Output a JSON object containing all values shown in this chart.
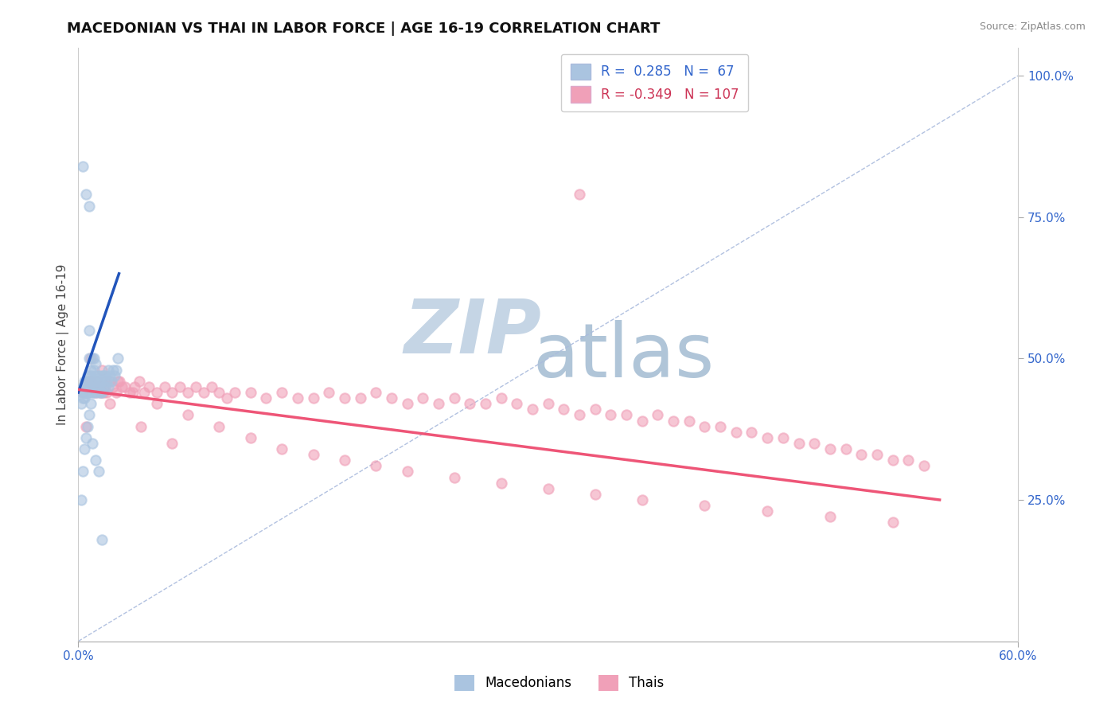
{
  "title": "MACEDONIAN VS THAI IN LABOR FORCE | AGE 16-19 CORRELATION CHART",
  "source": "Source: ZipAtlas.com",
  "ylabel": "In Labor Force | Age 16-19",
  "y_ticks_labels": [
    "100.0%",
    "75.0%",
    "50.0%",
    "25.0%"
  ],
  "y_tick_vals": [
    1.0,
    0.75,
    0.5,
    0.25
  ],
  "xlim": [
    0.0,
    0.6
  ],
  "ylim": [
    0.0,
    1.05
  ],
  "macedonian_color": "#aac4e0",
  "thai_color": "#f0a0b8",
  "macedonian_line_color": "#2255bb",
  "thai_line_color": "#ee5577",
  "ref_line_color": "#aabbdd",
  "background_color": "#ffffff",
  "watermark_zip_color": "#c5d5e5",
  "watermark_atlas_color": "#b0c5d8",
  "mac_x": [
    0.002,
    0.003,
    0.003,
    0.003,
    0.004,
    0.004,
    0.004,
    0.005,
    0.005,
    0.005,
    0.005,
    0.006,
    0.006,
    0.006,
    0.007,
    0.007,
    0.007,
    0.007,
    0.008,
    0.008,
    0.008,
    0.009,
    0.009,
    0.009,
    0.01,
    0.01,
    0.01,
    0.01,
    0.011,
    0.011,
    0.011,
    0.012,
    0.012,
    0.013,
    0.013,
    0.013,
    0.014,
    0.014,
    0.015,
    0.015,
    0.016,
    0.016,
    0.017,
    0.017,
    0.018,
    0.019,
    0.019,
    0.02,
    0.021,
    0.022,
    0.023,
    0.024,
    0.025,
    0.002,
    0.003,
    0.004,
    0.005,
    0.006,
    0.007,
    0.008,
    0.003,
    0.005,
    0.007,
    0.009,
    0.011,
    0.013,
    0.015
  ],
  "mac_y": [
    0.42,
    0.45,
    0.44,
    0.43,
    0.44,
    0.46,
    0.43,
    0.44,
    0.45,
    0.46,
    0.44,
    0.47,
    0.45,
    0.44,
    0.55,
    0.5,
    0.46,
    0.44,
    0.47,
    0.48,
    0.45,
    0.5,
    0.46,
    0.44,
    0.5,
    0.48,
    0.46,
    0.44,
    0.49,
    0.47,
    0.45,
    0.46,
    0.44,
    0.47,
    0.46,
    0.45,
    0.46,
    0.44,
    0.47,
    0.44,
    0.47,
    0.45,
    0.47,
    0.45,
    0.46,
    0.48,
    0.45,
    0.47,
    0.46,
    0.48,
    0.47,
    0.48,
    0.5,
    0.25,
    0.3,
    0.34,
    0.36,
    0.38,
    0.4,
    0.42,
    0.84,
    0.79,
    0.77,
    0.35,
    0.32,
    0.3,
    0.18
  ],
  "thai_x": [
    0.003,
    0.005,
    0.007,
    0.008,
    0.009,
    0.01,
    0.011,
    0.012,
    0.013,
    0.014,
    0.015,
    0.016,
    0.017,
    0.018,
    0.02,
    0.022,
    0.024,
    0.026,
    0.028,
    0.03,
    0.033,
    0.036,
    0.039,
    0.042,
    0.045,
    0.05,
    0.055,
    0.06,
    0.065,
    0.07,
    0.075,
    0.08,
    0.085,
    0.09,
    0.095,
    0.1,
    0.11,
    0.12,
    0.13,
    0.14,
    0.15,
    0.16,
    0.17,
    0.18,
    0.19,
    0.2,
    0.21,
    0.22,
    0.23,
    0.24,
    0.25,
    0.26,
    0.27,
    0.28,
    0.29,
    0.3,
    0.31,
    0.32,
    0.33,
    0.34,
    0.35,
    0.36,
    0.37,
    0.38,
    0.39,
    0.4,
    0.41,
    0.42,
    0.43,
    0.44,
    0.45,
    0.46,
    0.47,
    0.48,
    0.49,
    0.5,
    0.51,
    0.52,
    0.53,
    0.54,
    0.008,
    0.015,
    0.025,
    0.035,
    0.05,
    0.07,
    0.09,
    0.11,
    0.13,
    0.15,
    0.17,
    0.19,
    0.21,
    0.24,
    0.27,
    0.3,
    0.33,
    0.36,
    0.4,
    0.44,
    0.48,
    0.52,
    0.005,
    0.02,
    0.04,
    0.06,
    0.32
  ],
  "thai_y": [
    0.44,
    0.45,
    0.46,
    0.46,
    0.45,
    0.45,
    0.44,
    0.46,
    0.45,
    0.44,
    0.45,
    0.44,
    0.46,
    0.44,
    0.46,
    0.45,
    0.44,
    0.46,
    0.45,
    0.45,
    0.44,
    0.45,
    0.46,
    0.44,
    0.45,
    0.44,
    0.45,
    0.44,
    0.45,
    0.44,
    0.45,
    0.44,
    0.45,
    0.44,
    0.43,
    0.44,
    0.44,
    0.43,
    0.44,
    0.43,
    0.43,
    0.44,
    0.43,
    0.43,
    0.44,
    0.43,
    0.42,
    0.43,
    0.42,
    0.43,
    0.42,
    0.42,
    0.43,
    0.42,
    0.41,
    0.42,
    0.41,
    0.4,
    0.41,
    0.4,
    0.4,
    0.39,
    0.4,
    0.39,
    0.39,
    0.38,
    0.38,
    0.37,
    0.37,
    0.36,
    0.36,
    0.35,
    0.35,
    0.34,
    0.34,
    0.33,
    0.33,
    0.32,
    0.32,
    0.31,
    0.5,
    0.48,
    0.46,
    0.44,
    0.42,
    0.4,
    0.38,
    0.36,
    0.34,
    0.33,
    0.32,
    0.31,
    0.3,
    0.29,
    0.28,
    0.27,
    0.26,
    0.25,
    0.24,
    0.23,
    0.22,
    0.21,
    0.38,
    0.42,
    0.38,
    0.35,
    0.79
  ],
  "mac_line_x": [
    0.0,
    0.026
  ],
  "mac_line_y": [
    0.44,
    0.65
  ],
  "thai_line_x": [
    0.0,
    0.55
  ],
  "thai_line_y": [
    0.445,
    0.25
  ]
}
